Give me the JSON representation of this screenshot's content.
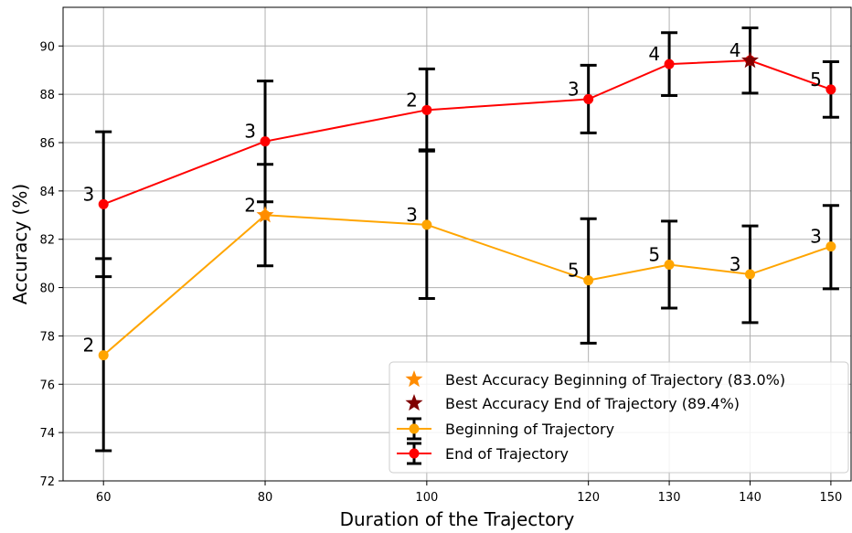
{
  "chart_data": {
    "type": "line",
    "title": "",
    "xlabel": "Duration of the Trajectory",
    "ylabel": "Accuracy (%)",
    "x": [
      60,
      80,
      100,
      120,
      130,
      140,
      150
    ],
    "xticks": [
      "60",
      "80",
      "100",
      "120",
      "130",
      "140",
      "150"
    ],
    "ylim": [
      72,
      91.6
    ],
    "yticks": [
      72,
      74,
      76,
      78,
      80,
      82,
      84,
      86,
      88,
      90
    ],
    "grid": true,
    "legend_position": "lower-right",
    "series": [
      {
        "name": "Beginning of Trajectory",
        "color": "#FFA500",
        "values": [
          77.2,
          83.0,
          82.6,
          80.3,
          80.95,
          80.55,
          81.7
        ],
        "err_low": [
          73.25,
          80.9,
          79.55,
          77.7,
          79.15,
          78.55,
          79.95
        ],
        "err_high": [
          81.2,
          85.1,
          85.65,
          82.85,
          82.75,
          82.55,
          83.4
        ],
        "point_labels": [
          "2",
          "2",
          "3",
          "5",
          "5",
          "3",
          "3"
        ]
      },
      {
        "name": "End of Trajectory",
        "color": "#FF0000",
        "values": [
          83.45,
          86.05,
          87.35,
          87.8,
          89.25,
          89.4,
          88.2
        ],
        "err_low": [
          80.45,
          83.55,
          85.7,
          86.4,
          87.95,
          88.05,
          87.05
        ],
        "err_high": [
          86.45,
          88.55,
          89.05,
          89.2,
          90.55,
          90.75,
          89.35
        ],
        "point_labels": [
          "3",
          "3",
          "2",
          "3",
          "4",
          "4",
          "5"
        ]
      }
    ],
    "best_points": [
      {
        "name": "Best Accuracy Beginning of Trajectory (83.0%)",
        "series": 0,
        "x": 80,
        "y": 83.0,
        "color": "#FF8C00",
        "marker": "star"
      },
      {
        "name": "Best Accuracy End of Trajectory (89.4%)",
        "series": 1,
        "x": 140,
        "y": 89.4,
        "color": "#800000",
        "marker": "star"
      }
    ]
  }
}
